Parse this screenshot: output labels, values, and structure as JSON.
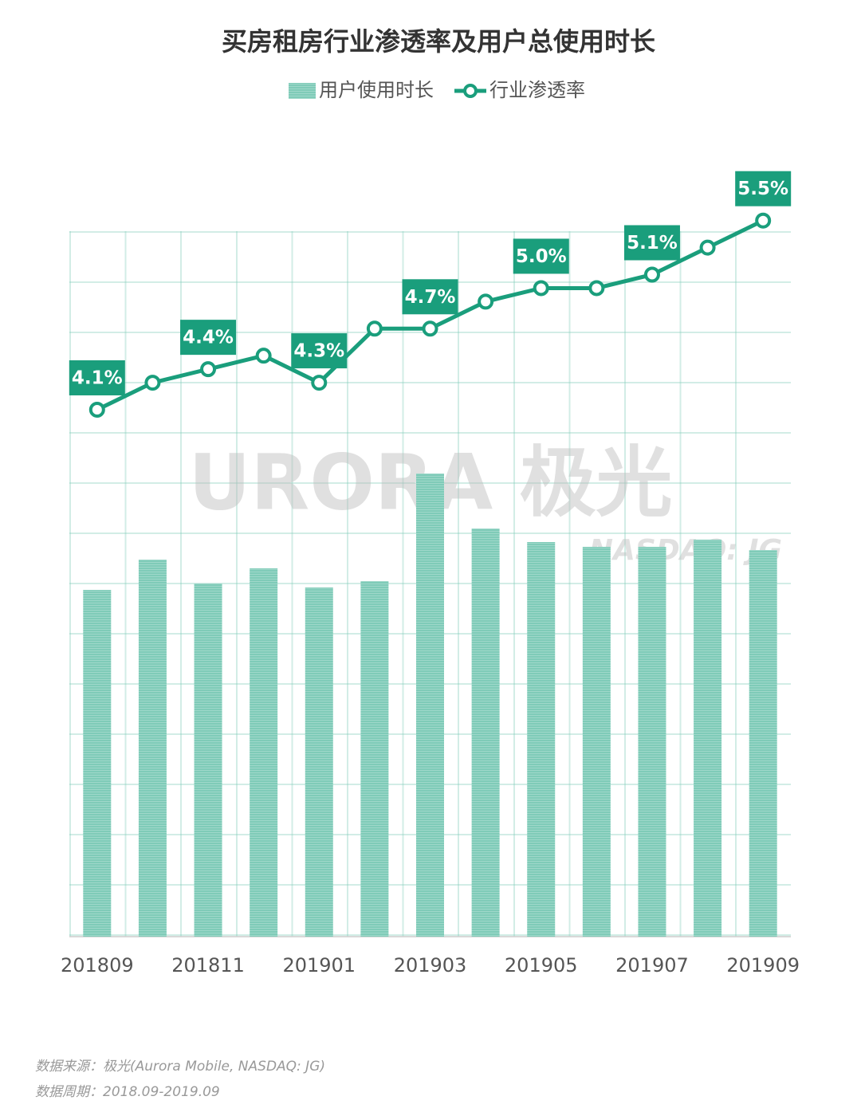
{
  "chart_data": {
    "type": "bar_line",
    "title": "买房租房行业渗透率及用户总使用时长",
    "categories": [
      "201809",
      null,
      "201811",
      null,
      "201901",
      null,
      "201903",
      null,
      "201905",
      null,
      "201907",
      null,
      "201909"
    ],
    "series": [
      {
        "name": "用户使用时长",
        "type": "bar",
        "color": "#7fcbb8",
        "values": [
          435,
          473,
          443,
          462,
          438,
          446,
          581,
          512,
          495,
          489,
          489,
          498,
          485
        ]
      },
      {
        "name": "行业渗透率",
        "type": "line",
        "axis": "y2",
        "color": "#1a9e7c",
        "values": [
          4.1,
          4.3,
          4.4,
          4.5,
          4.3,
          4.7,
          4.7,
          4.9,
          5.0,
          5.0,
          5.1,
          5.3,
          5.5
        ],
        "value_labels": [
          "4.1%",
          null,
          "4.4%",
          null,
          "4.3%",
          null,
          "4.7%",
          null,
          "5.0%",
          null,
          "5.1%",
          null,
          "5.5%"
        ]
      }
    ],
    "ylim": [
      0,
      1000
    ],
    "y2lim": [
      0.2,
      6.1
    ],
    "legend": "top",
    "watermark": "URORA 极光",
    "watermark_sub": "NASDAQ: JG",
    "source": "数据来源：极光(Aurora Mobile, NASDAQ: JG)",
    "period": "数据周期：2018.09-2019.09"
  }
}
